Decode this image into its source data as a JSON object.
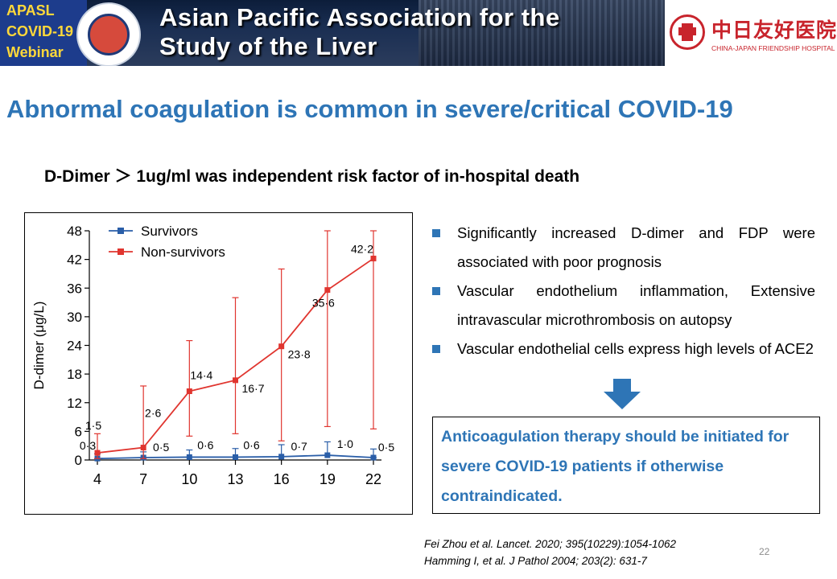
{
  "banner": {
    "badge_lines": [
      "APASL",
      "COVID-19",
      "Webinar"
    ],
    "title_line1": "Asian Pacific Association for the",
    "title_line2": "Study of the Liver"
  },
  "hospital": {
    "name_cn": "中日友好医院",
    "name_en": "CHINA-JAPAN FRIENDSHIP HOSPITAL"
  },
  "slide": {
    "title": "Abnormal coagulation is common in severe/critical COVID-19",
    "subtitle": "D-Dimer ＞ 1ug/ml was independent risk factor of in-hospital death",
    "bullets": [
      "Significantly increased D-dimer and FDP were associated with poor prognosis",
      "Vascular endothelium inflammation, Extensive intravascular microthrombosis on autopsy",
      "Vascular endothelial cells express high levels of ACE2"
    ],
    "callout": "Anticoagulation therapy should be initiated for severe COVID-19 patients if otherwise contraindicated.",
    "references": [
      "Fei Zhou et al. Lancet. 2020; 395(10229):1054-1062",
      "Hamming I, et al.  J Pathol 2004; 203(2): 631-7"
    ],
    "page_number": "22",
    "colors": {
      "title_blue": "#2e75b6",
      "survivors": "#2a5ea8",
      "non_survivors": "#e0352f"
    }
  },
  "chart_data": {
    "type": "line",
    "x": [
      4,
      7,
      10,
      13,
      16,
      19,
      22
    ],
    "ylabel": "D-dimer (μg/L)",
    "ylim": [
      0,
      48
    ],
    "yticks": [
      0,
      6,
      12,
      18,
      24,
      30,
      36,
      42,
      48
    ],
    "legend_position": "top-left",
    "series": [
      {
        "name": "Survivors",
        "color": "#2a5ea8",
        "values": [
          0.3,
          0.5,
          0.6,
          0.6,
          0.7,
          1.0,
          0.5
        ],
        "labels": [
          "0·3",
          "0·5",
          "0·6",
          "0·6",
          "0·7",
          "1·0",
          "0·5"
        ],
        "error_low": [
          0,
          0,
          0,
          0,
          0,
          0,
          0
        ],
        "error_high": [
          1.0,
          1.2,
          1.5,
          1.8,
          2.5,
          2.8,
          1.8
        ]
      },
      {
        "name": "Non-survivors",
        "color": "#e0352f",
        "values": [
          1.5,
          2.6,
          14.4,
          16.7,
          23.8,
          35.6,
          42.2
        ],
        "labels": [
          "1·5",
          "2·6",
          "14·4",
          "16·7",
          "23·8",
          "35·6",
          "42·2"
        ],
        "error_low": [
          0.3,
          0.3,
          5,
          5.5,
          4,
          7,
          6.5
        ],
        "error_high": [
          5.5,
          15.5,
          25,
          34,
          40,
          48,
          48
        ]
      }
    ]
  }
}
